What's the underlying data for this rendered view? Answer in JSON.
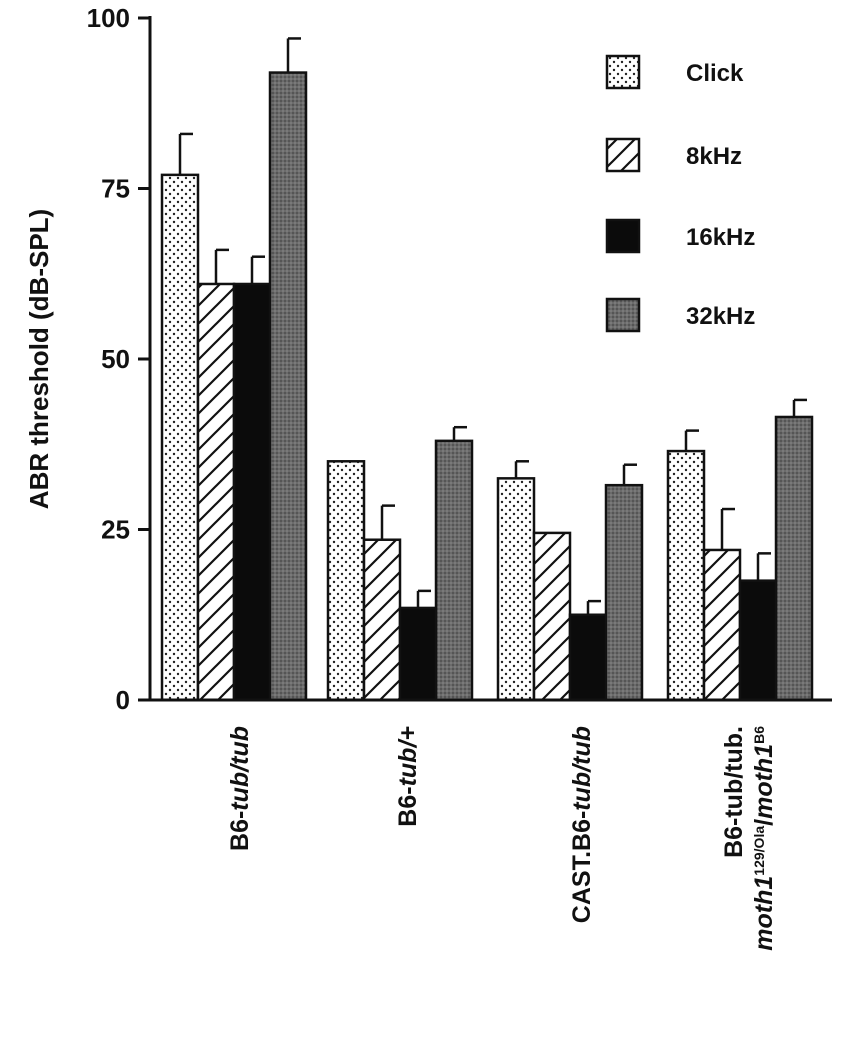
{
  "chart_data": {
    "type": "bar",
    "ylabel": "ABR threshold (dB-SPL)",
    "ylim": [
      0,
      100
    ],
    "yticks": [
      0,
      25,
      50,
      75,
      100
    ],
    "categories": [
      {
        "parts": [
          {
            "t": "B6-",
            "i": false
          },
          {
            "t": "tub/tub",
            "i": true
          }
        ]
      },
      {
        "parts": [
          {
            "t": "B6-",
            "i": false
          },
          {
            "t": "tub/+",
            "i": true
          }
        ]
      },
      {
        "parts": [
          {
            "t": "CAST.B6-",
            "i": false
          },
          {
            "t": "tub/tub",
            "i": true
          }
        ]
      },
      {
        "lines": [
          [
            {
              "t": "B6-tub/tub.",
              "i": false
            }
          ],
          [
            {
              "t": "moth1",
              "i": true
            },
            {
              "t": "129/Ola",
              "i": false,
              "sup": true
            },
            {
              "t": "/",
              "i": false
            },
            {
              "t": "moth1",
              "i": true
            },
            {
              "t": "B6",
              "i": false,
              "sup": true
            }
          ]
        ]
      }
    ],
    "series": [
      {
        "name": "Click",
        "pattern": "dots",
        "values": [
          77,
          35,
          32.5,
          36.5
        ],
        "errors": [
          6,
          0,
          2.5,
          3
        ]
      },
      {
        "name": "8kHz",
        "pattern": "hatch",
        "values": [
          61,
          23.5,
          24.5,
          22
        ],
        "errors": [
          5,
          5,
          0,
          6
        ]
      },
      {
        "name": "16kHz",
        "pattern": "solid",
        "values": [
          61,
          13.5,
          12.5,
          17.5
        ],
        "errors": [
          4,
          2.5,
          2,
          4
        ]
      },
      {
        "name": "32kHz",
        "pattern": "gray",
        "values": [
          92,
          38,
          31.5,
          41.5
        ],
        "errors": [
          5,
          2,
          3,
          2.5
        ]
      }
    ],
    "legend_position": "top-right",
    "grid": false
  }
}
